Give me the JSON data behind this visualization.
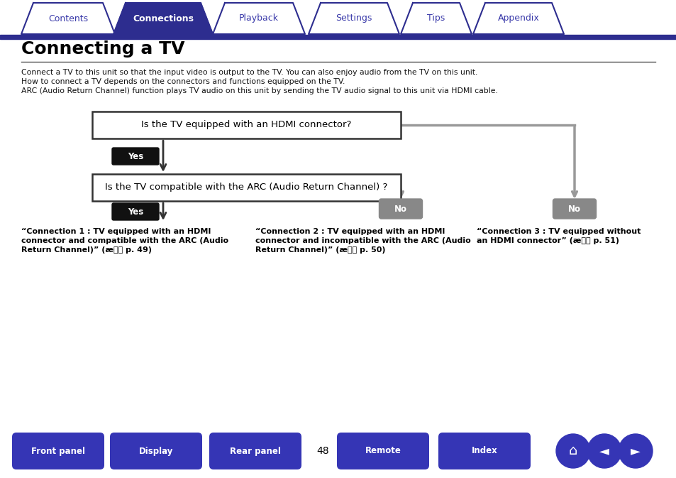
{
  "title": "Connecting a TV",
  "tab_labels": [
    "Contents",
    "Connections",
    "Playback",
    "Settings",
    "Tips",
    "Appendix"
  ],
  "tab_active_idx": 1,
  "tab_active_bg": "#2d2d8f",
  "tab_inactive_bg": "#ffffff",
  "tab_active_fg": "#ffffff",
  "tab_inactive_fg": "#3a3aaa",
  "nav_bar_color": "#2d2d8f",
  "body_bg": "#ffffff",
  "intro_lines": [
    "Connect a TV to this unit so that the input video is output to the TV. You can also enjoy audio from the TV on this unit.",
    "How to connect a TV depends on the connectors and functions equipped on the TV.",
    "ARC (Audio Return Channel) function plays TV audio on this unit by sending the TV audio signal to this unit via HDMI cable."
  ],
  "box1_text": "Is the TV equipped with an HDMI connector?",
  "box2_text": "Is the TV compatible with the ARC (Audio Return Channel) ?",
  "yes_bg": "#111111",
  "no_bg": "#888888",
  "arrow_dark": "#333333",
  "arrow_gray": "#999999",
  "conn1_lines": [
    "“Connection 1 : TV equipped with an HDMI",
    "connector and compatible with the ARC (Audio",
    "Return Channel)” (æ p. 49)"
  ],
  "conn2_lines": [
    "“Connection 2 : TV equipped with an HDMI",
    "connector and incompatible with the ARC (Audio",
    "Return Channel)” (æ p. 50)"
  ],
  "conn3_lines": [
    "“Connection 3 : TV equipped without",
    "an HDMI connector” (æ p. 51)"
  ],
  "bottom_btns": [
    "Front panel",
    "Display",
    "Rear panel",
    "Remote",
    "Index"
  ],
  "page_num": "48",
  "btn_bg": "#3535b5",
  "btn_fg": "#ffffff",
  "tab_positions": [
    35,
    165,
    305,
    440,
    570,
    672
  ],
  "tab_widths": [
    122,
    130,
    120,
    118,
    90,
    118
  ]
}
